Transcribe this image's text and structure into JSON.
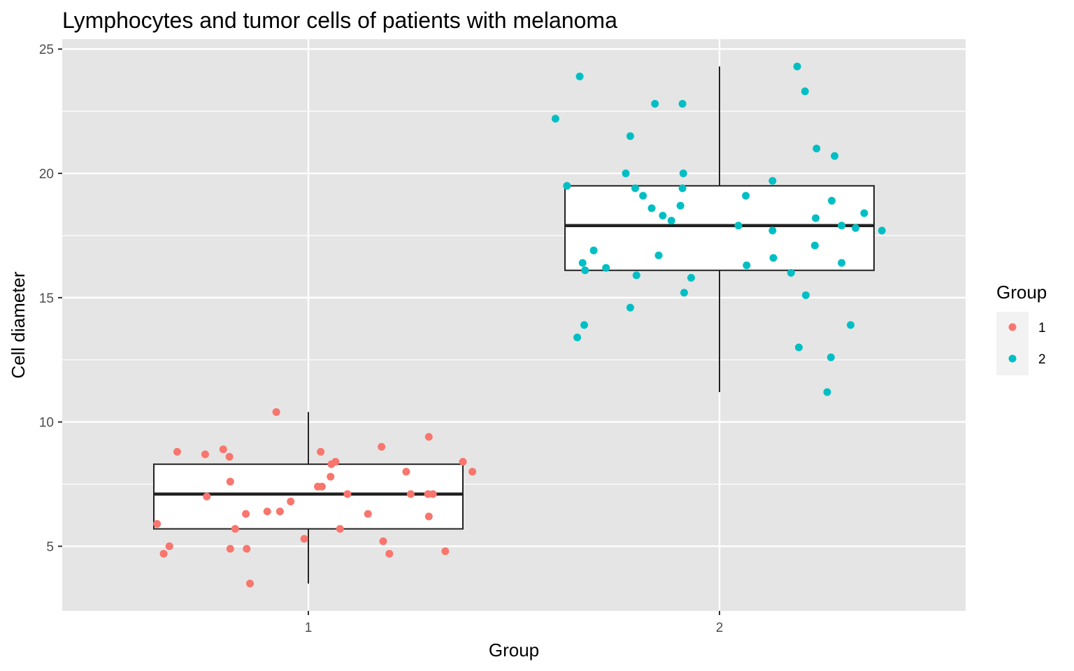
{
  "chart_data": {
    "type": "boxplot",
    "title": "Lymphocytes and tumor cells of patients with melanoma",
    "xlabel": "Group",
    "ylabel": "Cell diameter",
    "categories": [
      "1",
      "2"
    ],
    "y_ticks": [
      5,
      10,
      15,
      20,
      25
    ],
    "ylim": [
      2.4,
      25.4
    ],
    "grid": true,
    "legend": {
      "title": "Group",
      "position": "right",
      "entries": [
        "1",
        "2"
      ]
    },
    "colors": {
      "1": "#F8766D",
      "2": "#00BFC4",
      "panel": "#E5E5E5",
      "grid": "#FFFFFF",
      "box_line": "#222222"
    },
    "boxes": [
      {
        "group": "1",
        "whisker_low": 3.5,
        "q1": 5.7,
        "median": 7.1,
        "q3": 8.3,
        "whisker_high": 10.4
      },
      {
        "group": "2",
        "whisker_low": 11.2,
        "q1": 16.1,
        "median": 17.9,
        "q3": 19.5,
        "whisker_high": 24.3
      }
    ],
    "series": [
      {
        "name": "1",
        "points": [
          {
            "x": 1,
            "jitter": -0.368,
            "y": 5.9
          },
          {
            "x": 1,
            "jitter": -0.352,
            "y": 4.7
          },
          {
            "x": 1,
            "jitter": -0.338,
            "y": 5.0
          },
          {
            "x": 1,
            "jitter": -0.319,
            "y": 8.8
          },
          {
            "x": 1,
            "jitter": -0.251,
            "y": 8.7
          },
          {
            "x": 1,
            "jitter": -0.247,
            "y": 7.0
          },
          {
            "x": 1,
            "jitter": -0.207,
            "y": 8.9
          },
          {
            "x": 1,
            "jitter": -0.192,
            "y": 8.6
          },
          {
            "x": 1,
            "jitter": -0.19,
            "y": 7.6
          },
          {
            "x": 1,
            "jitter": -0.19,
            "y": 4.9
          },
          {
            "x": 1,
            "jitter": -0.178,
            "y": 5.7
          },
          {
            "x": 1,
            "jitter": -0.152,
            "y": 6.3
          },
          {
            "x": 1,
            "jitter": -0.15,
            "y": 4.9
          },
          {
            "x": 1,
            "jitter": -0.142,
            "y": 3.5
          },
          {
            "x": 1,
            "jitter": -0.1,
            "y": 6.4
          },
          {
            "x": 1,
            "jitter": -0.078,
            "y": 10.4
          },
          {
            "x": 1,
            "jitter": -0.069,
            "y": 6.4
          },
          {
            "x": 1,
            "jitter": -0.043,
            "y": 6.8
          },
          {
            "x": 1,
            "jitter": -0.01,
            "y": 5.3
          },
          {
            "x": 1,
            "jitter": 0.023,
            "y": 7.4
          },
          {
            "x": 1,
            "jitter": 0.03,
            "y": 8.8
          },
          {
            "x": 1,
            "jitter": 0.033,
            "y": 7.4
          },
          {
            "x": 1,
            "jitter": 0.054,
            "y": 7.8
          },
          {
            "x": 1,
            "jitter": 0.056,
            "y": 8.3
          },
          {
            "x": 1,
            "jitter": 0.066,
            "y": 8.4
          },
          {
            "x": 1,
            "jitter": 0.077,
            "y": 5.7
          },
          {
            "x": 1,
            "jitter": 0.095,
            "y": 7.1
          },
          {
            "x": 1,
            "jitter": 0.145,
            "y": 6.3
          },
          {
            "x": 1,
            "jitter": 0.178,
            "y": 9.0
          },
          {
            "x": 1,
            "jitter": 0.182,
            "y": 5.2
          },
          {
            "x": 1,
            "jitter": 0.197,
            "y": 4.7
          },
          {
            "x": 1,
            "jitter": 0.238,
            "y": 8.0
          },
          {
            "x": 1,
            "jitter": 0.249,
            "y": 7.1
          },
          {
            "x": 1,
            "jitter": 0.291,
            "y": 7.1
          },
          {
            "x": 1,
            "jitter": 0.293,
            "y": 9.4
          },
          {
            "x": 1,
            "jitter": 0.293,
            "y": 6.2
          },
          {
            "x": 1,
            "jitter": 0.303,
            "y": 7.1
          },
          {
            "x": 1,
            "jitter": 0.333,
            "y": 4.8
          },
          {
            "x": 1,
            "jitter": 0.376,
            "y": 8.4
          },
          {
            "x": 1,
            "jitter": 0.399,
            "y": 8.0
          }
        ]
      },
      {
        "name": "2",
        "points": [
          {
            "x": 2,
            "jitter": -0.399,
            "y": 22.2
          },
          {
            "x": 2,
            "jitter": -0.371,
            "y": 19.5
          },
          {
            "x": 2,
            "jitter": -0.346,
            "y": 13.4
          },
          {
            "x": 2,
            "jitter": -0.34,
            "y": 23.9
          },
          {
            "x": 2,
            "jitter": -0.333,
            "y": 16.4
          },
          {
            "x": 2,
            "jitter": -0.329,
            "y": 13.9
          },
          {
            "x": 2,
            "jitter": -0.327,
            "y": 16.1
          },
          {
            "x": 2,
            "jitter": -0.306,
            "y": 16.9
          },
          {
            "x": 2,
            "jitter": -0.276,
            "y": 16.2
          },
          {
            "x": 2,
            "jitter": -0.228,
            "y": 20.0
          },
          {
            "x": 2,
            "jitter": -0.217,
            "y": 21.5
          },
          {
            "x": 2,
            "jitter": -0.217,
            "y": 14.6
          },
          {
            "x": 2,
            "jitter": -0.205,
            "y": 19.4
          },
          {
            "x": 2,
            "jitter": -0.202,
            "y": 15.9
          },
          {
            "x": 2,
            "jitter": -0.186,
            "y": 19.1
          },
          {
            "x": 2,
            "jitter": -0.165,
            "y": 18.6
          },
          {
            "x": 2,
            "jitter": -0.157,
            "y": 22.8
          },
          {
            "x": 2,
            "jitter": -0.148,
            "y": 16.7
          },
          {
            "x": 2,
            "jitter": -0.138,
            "y": 18.3
          },
          {
            "x": 2,
            "jitter": -0.117,
            "y": 18.1
          },
          {
            "x": 2,
            "jitter": -0.095,
            "y": 18.7
          },
          {
            "x": 2,
            "jitter": -0.09,
            "y": 22.8
          },
          {
            "x": 2,
            "jitter": -0.09,
            "y": 19.4
          },
          {
            "x": 2,
            "jitter": -0.088,
            "y": 20.0
          },
          {
            "x": 2,
            "jitter": -0.086,
            "y": 15.2
          },
          {
            "x": 2,
            "jitter": -0.069,
            "y": 15.8
          },
          {
            "x": 2,
            "jitter": 0.046,
            "y": 17.9
          },
          {
            "x": 2,
            "jitter": 0.064,
            "y": 19.1
          },
          {
            "x": 2,
            "jitter": 0.066,
            "y": 16.3
          },
          {
            "x": 2,
            "jitter": 0.129,
            "y": 19.7
          },
          {
            "x": 2,
            "jitter": 0.129,
            "y": 17.7
          },
          {
            "x": 2,
            "jitter": 0.131,
            "y": 16.6
          },
          {
            "x": 2,
            "jitter": 0.174,
            "y": 16.0
          },
          {
            "x": 2,
            "jitter": 0.189,
            "y": 24.3
          },
          {
            "x": 2,
            "jitter": 0.193,
            "y": 13.0
          },
          {
            "x": 2,
            "jitter": 0.208,
            "y": 23.3
          },
          {
            "x": 2,
            "jitter": 0.21,
            "y": 15.1
          },
          {
            "x": 2,
            "jitter": 0.232,
            "y": 17.1
          },
          {
            "x": 2,
            "jitter": 0.234,
            "y": 18.2
          },
          {
            "x": 2,
            "jitter": 0.236,
            "y": 21.0
          },
          {
            "x": 2,
            "jitter": 0.262,
            "y": 11.2
          },
          {
            "x": 2,
            "jitter": 0.271,
            "y": 12.6
          },
          {
            "x": 2,
            "jitter": 0.273,
            "y": 18.9
          },
          {
            "x": 2,
            "jitter": 0.28,
            "y": 20.7
          },
          {
            "x": 2,
            "jitter": 0.297,
            "y": 17.9
          },
          {
            "x": 2,
            "jitter": 0.297,
            "y": 16.4
          },
          {
            "x": 2,
            "jitter": 0.319,
            "y": 13.9
          },
          {
            "x": 2,
            "jitter": 0.331,
            "y": 17.8
          },
          {
            "x": 2,
            "jitter": 0.352,
            "y": 18.4
          },
          {
            "x": 2,
            "jitter": 0.395,
            "y": 17.7
          }
        ]
      }
    ]
  }
}
